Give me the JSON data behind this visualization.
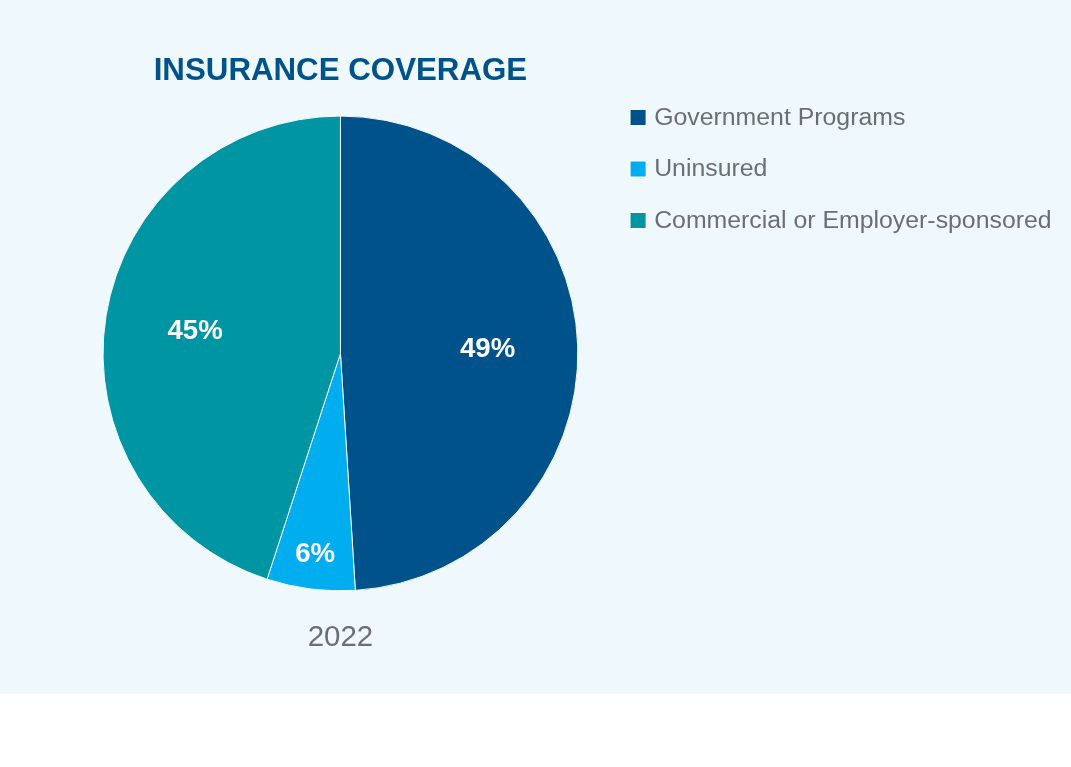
{
  "chart_data": {
    "type": "pie",
    "title": "INSURANCE COVERAGE",
    "categories": [
      "Government Programs",
      "Uninsured",
      "Commercial or Employer-sponsored"
    ],
    "values": [
      49,
      6,
      45
    ],
    "colors": [
      "#00538a",
      "#00aeef",
      "#0095a3"
    ],
    "value_labels": [
      "49%",
      "6%",
      "45%"
    ],
    "legend": "right",
    "annotations": [
      "2022"
    ]
  }
}
